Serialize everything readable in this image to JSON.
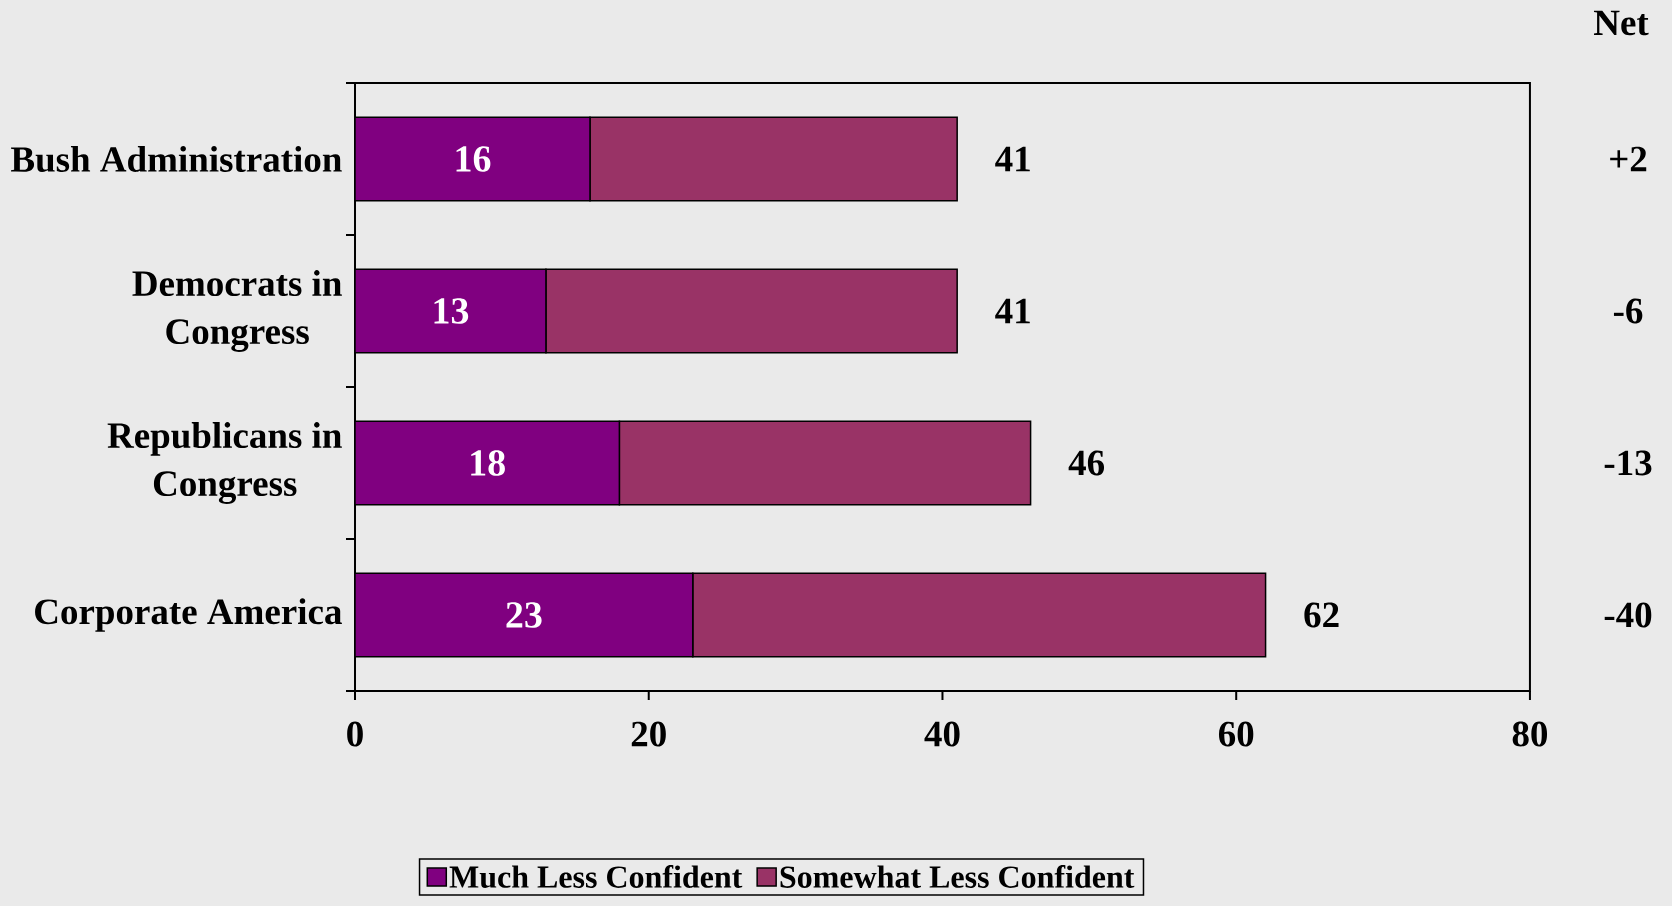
{
  "chart_data": {
    "type": "bar",
    "orientation": "horizontal",
    "stacked": true,
    "categories": [
      "Bush Administration",
      "Democrats in Congress",
      "Republicans in Congress",
      "Corporate America"
    ],
    "series": [
      {
        "name": "Much Less Confident",
        "color": "#800080",
        "values": [
          16,
          13,
          18,
          23
        ],
        "value_labels": [
          "16",
          "13",
          "18",
          "23"
        ]
      },
      {
        "name": "Somewhat Less Confident",
        "color": "#993366",
        "values": [
          25,
          28,
          28,
          39
        ]
      }
    ],
    "totals": [
      "41",
      "41",
      "46",
      "62"
    ],
    "xlim": [
      0,
      80
    ],
    "xticks": [
      0,
      20,
      40,
      60,
      80
    ],
    "annotations": [
      "Net",
      "+2",
      "-6",
      "-13",
      "-40"
    ],
    "legend": "bottom"
  }
}
